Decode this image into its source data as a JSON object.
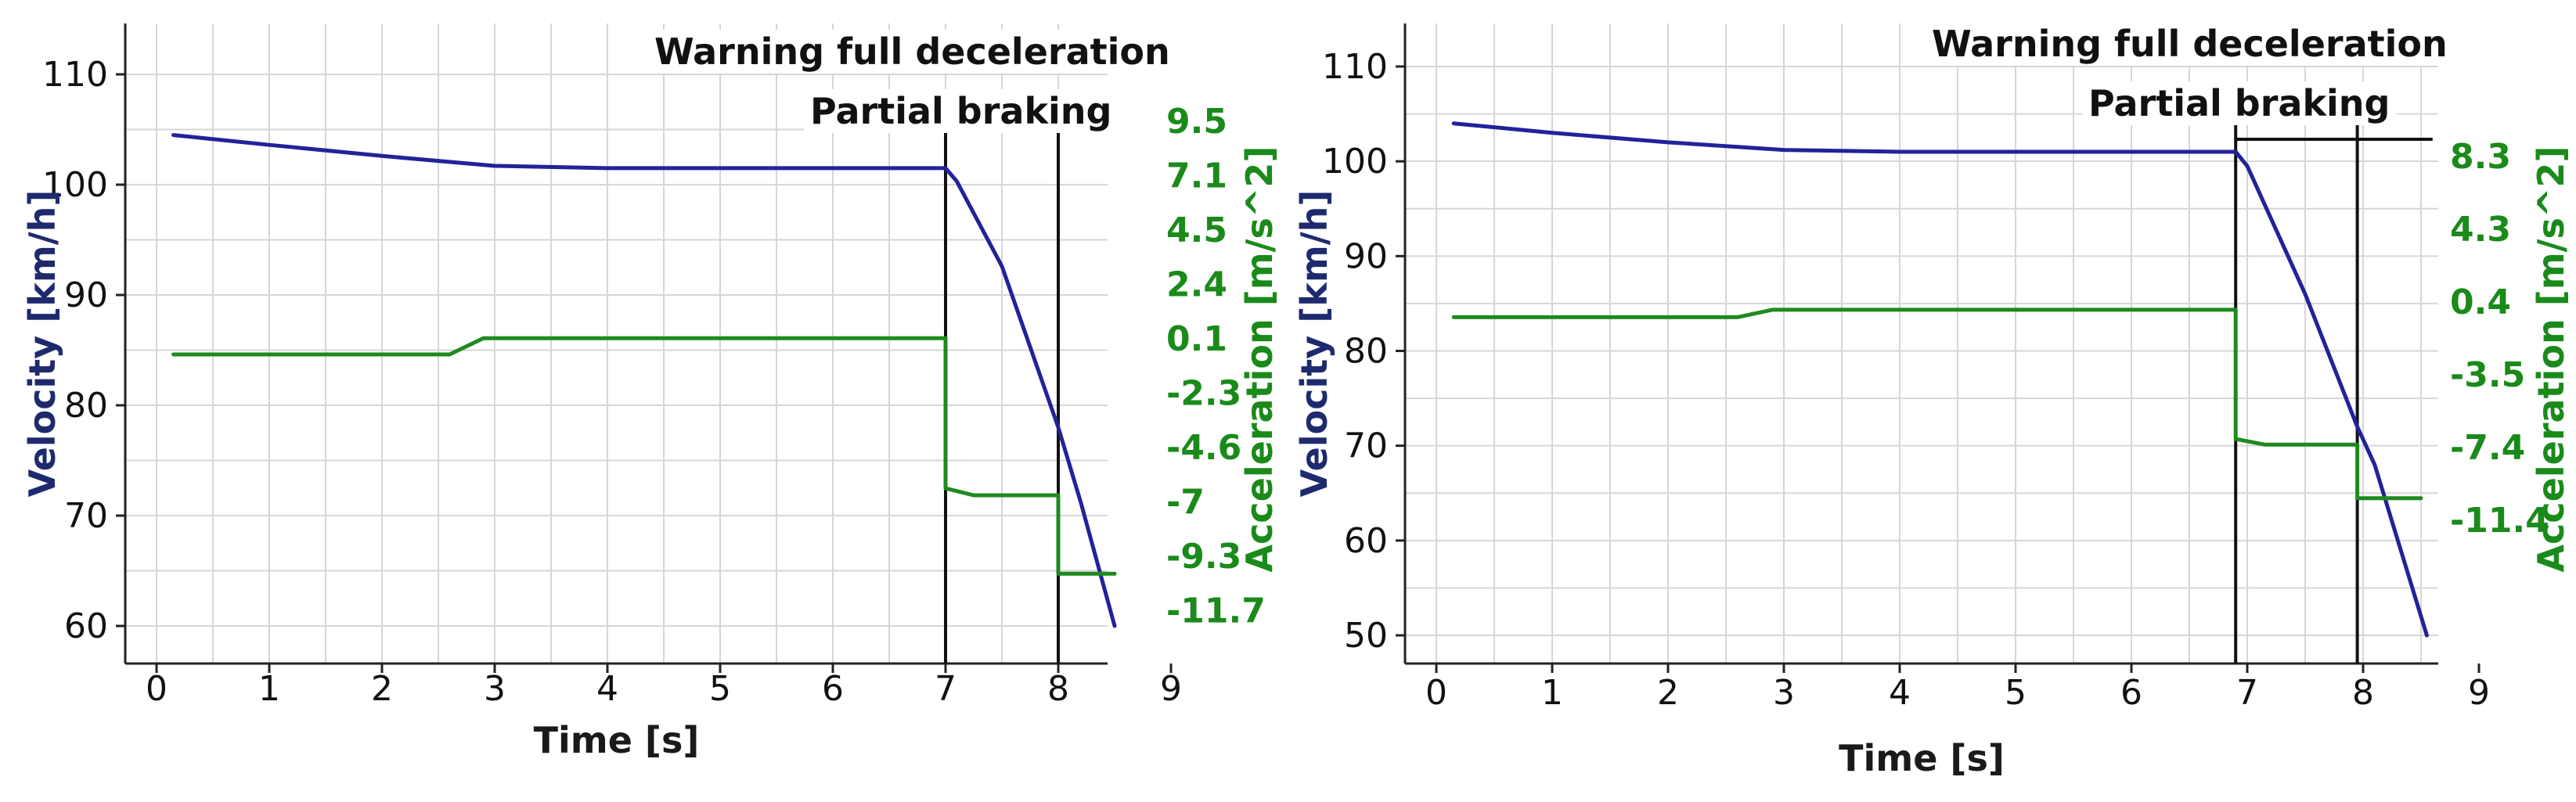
{
  "chart_data": [
    {
      "type": "line",
      "xlabel": "Time [s]",
      "ylabel": "Velocity [km/h]",
      "y2label": "Acceleration [m/s^2]",
      "xlim": [
        0,
        9
      ],
      "ylim": [
        57,
        113
      ],
      "x_ticks": [
        "0",
        "1",
        "2",
        "3",
        "4",
        "5",
        "6",
        "7",
        "8",
        "9"
      ],
      "y_ticks": [
        "60",
        "70",
        "80",
        "90",
        "100",
        "110"
      ],
      "y2_ticks": [
        "9.5",
        "7.1",
        "4.5",
        "2.4",
        "0.1",
        "-2.3",
        "-4.6",
        "-7",
        "-9.3",
        "-11.7"
      ],
      "grid": true,
      "annotations": [
        {
          "label": "Warning full deceleration",
          "x": 7.0
        },
        {
          "label": "Partial braking",
          "x": 8.0
        }
      ],
      "series": [
        {
          "role": "velocity",
          "color": "#22229a",
          "points": [
            [
              0.15,
              104.5
            ],
            [
              1,
              103.6
            ],
            [
              2,
              102.6
            ],
            [
              3,
              101.7
            ],
            [
              4,
              101.5
            ],
            [
              5,
              101.5
            ],
            [
              6,
              101.5
            ],
            [
              7.0,
              101.5
            ],
            [
              7.1,
              100.3
            ],
            [
              7.5,
              92.6
            ],
            [
              8.0,
              78.0
            ],
            [
              8.2,
              71.2
            ],
            [
              8.5,
              60.0
            ]
          ]
        },
        {
          "role": "acceleration",
          "color": "#1e8a1e",
          "points": [
            [
              0.15,
              -0.6
            ],
            [
              2.6,
              -0.6
            ],
            [
              2.9,
              0.1
            ],
            [
              7.0,
              0.1
            ],
            [
              7.0,
              -6.4
            ],
            [
              7.25,
              -6.7
            ],
            [
              8.0,
              -6.7
            ],
            [
              8.0,
              -10.1
            ],
            [
              8.5,
              -10.1
            ]
          ]
        }
      ]
    },
    {
      "type": "line",
      "xlabel": "Time [s]",
      "ylabel": "Velocity [km/h]",
      "y2label": "Acceleration [m/s^2]",
      "xlim": [
        0,
        9
      ],
      "ylim": [
        47,
        113
      ],
      "x_ticks": [
        "0",
        "1",
        "2",
        "3",
        "4",
        "5",
        "6",
        "7",
        "8",
        "9"
      ],
      "y_ticks": [
        "50",
        "60",
        "70",
        "80",
        "90",
        "100",
        "110"
      ],
      "y2_ticks": [
        "8.3",
        "4.3",
        "0.4",
        "-3.5",
        "-7.4",
        "-11.4"
      ],
      "grid": true,
      "annotations": [
        {
          "label": "Warning full deceleration",
          "x": 6.9
        },
        {
          "label": "Partial braking",
          "x": 7.95
        }
      ],
      "series": [
        {
          "role": "velocity",
          "color": "#22229a",
          "points": [
            [
              0.15,
              104.0
            ],
            [
              1,
              103.0
            ],
            [
              2,
              102.0
            ],
            [
              3,
              101.2
            ],
            [
              4,
              101.0
            ],
            [
              5,
              101.0
            ],
            [
              6,
              101.0
            ],
            [
              6.9,
              101.0
            ],
            [
              7.0,
              99.5
            ],
            [
              7.5,
              86.0
            ],
            [
              7.95,
              72.0
            ],
            [
              8.1,
              68.0
            ],
            [
              8.55,
              50.0
            ]
          ]
        },
        {
          "role": "acceleration",
          "color": "#1e8a1e",
          "points": [
            [
              0.15,
              -0.4
            ],
            [
              2.6,
              -0.4
            ],
            [
              2.9,
              0.0
            ],
            [
              6.9,
              0.0
            ],
            [
              6.9,
              -7.0
            ],
            [
              7.15,
              -7.3
            ],
            [
              7.95,
              -7.3
            ],
            [
              7.95,
              -10.2
            ],
            [
              8.5,
              -10.2
            ]
          ]
        }
      ]
    }
  ]
}
